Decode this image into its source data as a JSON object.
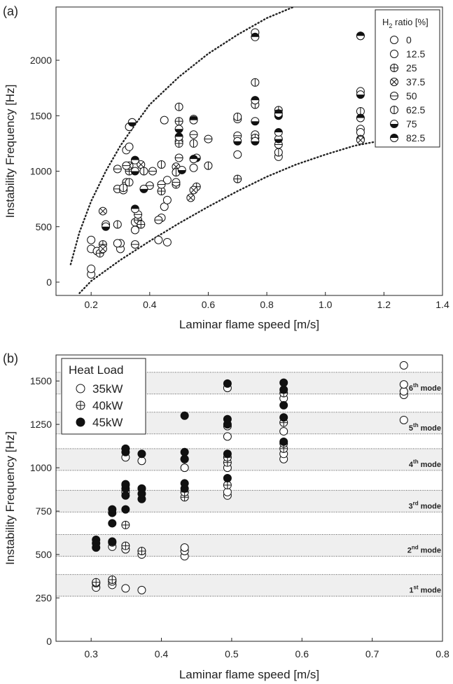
{
  "chart_data": [
    {
      "type": "scatter",
      "panel_label": "(a)",
      "xlabel": "Laminar flame speed [m/s]",
      "ylabel": "Instability Frequency [Hz]",
      "xlim": [
        0.08,
        1.4
      ],
      "ylim": [
        -120,
        2480
      ],
      "xticks": [
        0.2,
        0.4,
        0.6,
        0.8,
        1.0,
        1.2,
        1.4
      ],
      "xtick_labels": [
        "0.2",
        "0.4",
        "0.6",
        "0.8",
        "1.0",
        "1.2",
        "1.4"
      ],
      "yticks": [
        0,
        500,
        1000,
        1500,
        2000
      ],
      "ytick_labels": [
        "0",
        "500",
        "1000",
        "1500",
        "2000"
      ],
      "legend": {
        "title_main": "H",
        "title_sub": "2",
        "title_rest": " ratio [%]",
        "position": "top-right",
        "entries": [
          {
            "label": "0",
            "marker": "empty"
          },
          {
            "label": "12.5",
            "marker": "empty"
          },
          {
            "label": "25",
            "marker": "plus"
          },
          {
            "label": "37.5",
            "marker": "x"
          },
          {
            "label": "50",
            "marker": "hline"
          },
          {
            "label": "62.5",
            "marker": "vline"
          },
          {
            "label": "75",
            "marker": "bottomfill"
          },
          {
            "label": "82.5",
            "marker": "topfill"
          }
        ]
      },
      "curves": [
        {
          "name": "upper-bound",
          "style": "dotted",
          "x": [
            0.13,
            0.16,
            0.2,
            0.25,
            0.3,
            0.35,
            0.4,
            0.5,
            0.6,
            0.7,
            0.8,
            0.9
          ],
          "y": [
            160,
            450,
            730,
            1000,
            1230,
            1420,
            1600,
            1850,
            2060,
            2230,
            2380,
            2490
          ]
        },
        {
          "name": "lower-bound",
          "style": "dotted",
          "x": [
            0.16,
            0.2,
            0.3,
            0.4,
            0.5,
            0.6,
            0.7,
            0.8,
            0.9,
            1.0,
            1.1,
            1.2
          ],
          "y": [
            -100,
            10,
            200,
            370,
            530,
            680,
            820,
            950,
            1060,
            1150,
            1230,
            1280
          ]
        },
        {
          "name": "lower-bound-ext",
          "style": "dotted",
          "x": [
            1.2,
            1.25
          ],
          "y": [
            1280,
            1300
          ]
        }
      ],
      "series": [
        {
          "name": "0",
          "marker": "empty",
          "x": [
            0.2,
            0.2,
            0.2,
            0.3,
            0.3,
            0.33,
            0.35,
            0.43,
            0.46,
            0.45,
            0.76,
            1.12
          ],
          "y": [
            70,
            120,
            380,
            300,
            350,
            1400,
            540,
            380,
            360,
            1460,
            2250,
            2220
          ]
        },
        {
          "name": "12.5",
          "marker": "empty",
          "x": [
            0.2,
            0.22,
            0.29,
            0.32,
            0.33,
            0.35,
            0.44,
            0.45,
            0.46,
            0.46,
            0.5,
            0.55,
            0.7,
            0.7,
            0.76,
            0.84,
            1.12,
            1.12,
            1.12
          ],
          "y": [
            300,
            280,
            350,
            1190,
            1220,
            470,
            580,
            680,
            740,
            920,
            1270,
            1030,
            1150,
            1470,
            1330,
            1130,
            1380,
            1350,
            1720
          ]
        },
        {
          "name": "25",
          "marker": "plus",
          "x": [
            0.23,
            0.24,
            0.33,
            0.36,
            0.37,
            0.44,
            0.49,
            0.5,
            0.5,
            0.56,
            0.7,
            0.76,
            0.84,
            1.12
          ],
          "y": [
            260,
            340,
            1000,
            560,
            520,
            820,
            880,
            1450,
            1250,
            860,
            930,
            1300,
            1550,
            1290
          ]
        },
        {
          "name": "37.5",
          "marker": "x",
          "x": [
            0.24,
            0.24,
            0.33,
            0.37,
            0.49,
            0.54,
            0.55,
            1.12
          ],
          "y": [
            300,
            640,
            1050,
            1060,
            1040,
            760,
            830,
            1280
          ]
        },
        {
          "name": "50",
          "marker": "hline",
          "x": [
            0.25,
            0.29,
            0.29,
            0.31,
            0.32,
            0.32,
            0.35,
            0.36,
            0.4,
            0.41,
            0.43,
            0.44,
            0.49,
            0.5,
            0.55,
            0.6,
            0.7,
            0.84
          ],
          "y": [
            520,
            840,
            1020,
            830,
            900,
            1050,
            340,
            610,
            870,
            1000,
            560,
            880,
            900,
            1120,
            1330,
            1290,
            1320,
            1240
          ]
        },
        {
          "name": "62.5",
          "marker": "vline",
          "x": [
            0.29,
            0.31,
            0.33,
            0.38,
            0.44,
            0.49,
            0.5,
            0.55,
            0.6,
            0.7,
            0.76,
            0.76,
            0.84,
            1.12
          ],
          "y": [
            520,
            850,
            900,
            1000,
            1060,
            990,
            1580,
            1250,
            1050,
            1490,
            1800,
            1600,
            1170,
            1540
          ]
        },
        {
          "name": "75",
          "marker": "bottomfill",
          "x": [
            0.25,
            0.34,
            0.35,
            0.38,
            0.5,
            0.51,
            0.55,
            0.56,
            0.7,
            0.76,
            0.76,
            0.84,
            0.84,
            1.12
          ],
          "y": [
            500,
            1440,
            1000,
            840,
            1380,
            1010,
            1470,
            1120,
            1270,
            1450,
            1270,
            1500,
            1290,
            1690
          ]
        },
        {
          "name": "82.5",
          "marker": "topfill",
          "x": [
            0.35,
            0.35,
            0.5,
            0.55,
            0.55,
            0.76,
            0.76,
            0.84,
            0.84,
            1.12,
            1.12
          ],
          "y": [
            660,
            1100,
            1310,
            1110,
            1460,
            1640,
            2210,
            1520,
            1350,
            1480,
            2220
          ]
        }
      ]
    },
    {
      "type": "scatter",
      "panel_label": "(b)",
      "xlabel": "Laminar flame speed [m/s]",
      "ylabel": "Instability Frequency [Hz]",
      "xlim": [
        0.25,
        0.8
      ],
      "ylim": [
        0,
        1650
      ],
      "xticks": [
        0.3,
        0.4,
        0.5,
        0.6,
        0.7,
        0.8
      ],
      "xtick_labels": [
        "0.3",
        "0.4",
        "0.5",
        "0.6",
        "0.7",
        "0.8"
      ],
      "yticks": [
        0,
        250,
        500,
        750,
        1000,
        1250,
        1500
      ],
      "ytick_labels": [
        "0",
        "250",
        "500",
        "750",
        "1000",
        "1250",
        "1500"
      ],
      "legend": {
        "title": "Heat Load",
        "position": "top-left",
        "entries": [
          {
            "label": "35kW",
            "marker": "empty"
          },
          {
            "label": "40kW",
            "marker": "plus"
          },
          {
            "label": "45kW",
            "marker": "filled"
          }
        ]
      },
      "mode_bands": [
        {
          "mode": "1st",
          "label_num": "1",
          "label_sup": "st",
          "label_rest": " mode",
          "range": [
            260,
            385
          ]
        },
        {
          "mode": "2nd",
          "label_num": "2",
          "label_sup": "nd",
          "label_rest": " mode",
          "range": [
            490,
            615
          ]
        },
        {
          "mode": "3rd",
          "label_num": "3",
          "label_sup": "rd",
          "label_rest": " mode",
          "range": [
            745,
            870
          ]
        },
        {
          "mode": "4th",
          "label_num": "4",
          "label_sup": "th",
          "label_rest": " mode",
          "range": [
            985,
            1110
          ]
        },
        {
          "mode": "5th",
          "label_num": "5",
          "label_sup": "th",
          "label_rest": " mode",
          "range": [
            1195,
            1320
          ]
        },
        {
          "mode": "6th",
          "label_num": "6",
          "label_sup": "th",
          "label_rest": " mode",
          "range": [
            1425,
            1550
          ]
        }
      ],
      "series": [
        {
          "name": "35kW",
          "marker": "empty",
          "x": [
            0.307,
            0.307,
            0.33,
            0.33,
            0.33,
            0.349,
            0.349,
            0.349,
            0.349,
            0.372,
            0.372,
            0.372,
            0.433,
            0.433,
            0.433,
            0.433,
            0.494,
            0.494,
            0.494,
            0.494,
            0.494,
            0.494,
            0.574,
            0.574,
            0.574,
            0.574,
            0.745,
            0.745,
            0.745,
            0.745,
            0.745
          ],
          "y": [
            310,
            335,
            325,
            345,
            545,
            305,
            530,
            860,
            1060,
            295,
            500,
            1040,
            490,
            520,
            540,
            1000,
            840,
            860,
            1000,
            1180,
            1240,
            1460,
            1050,
            1080,
            1210,
            1400,
            1275,
            1420,
            1440,
            1480,
            1590
          ]
        },
        {
          "name": "40kW",
          "marker": "plus",
          "x": [
            0.307,
            0.33,
            0.33,
            0.349,
            0.349,
            0.349,
            0.372,
            0.372,
            0.433,
            0.433,
            0.433,
            0.494,
            0.494,
            0.494,
            0.574,
            0.574,
            0.574,
            0.574
          ],
          "y": [
            340,
            355,
            570,
            550,
            670,
            900,
            520,
            880,
            830,
            860,
            1050,
            900,
            1030,
            1060,
            1110,
            1140,
            1260,
            1430
          ]
        },
        {
          "name": "45kW",
          "marker": "filled",
          "x": [
            0.307,
            0.307,
            0.307,
            0.33,
            0.33,
            0.33,
            0.33,
            0.349,
            0.349,
            0.349,
            0.349,
            0.349,
            0.349,
            0.372,
            0.372,
            0.372,
            0.372,
            0.433,
            0.433,
            0.433,
            0.433,
            0.433,
            0.494,
            0.494,
            0.494,
            0.494,
            0.494,
            0.574,
            0.574,
            0.574,
            0.574,
            0.574
          ],
          "y": [
            540,
            565,
            585,
            680,
            740,
            760,
            575,
            760,
            840,
            880,
            905,
            1090,
            1110,
            820,
            850,
            880,
            1080,
            880,
            910,
            1050,
            1090,
            1300,
            940,
            1080,
            1250,
            1280,
            1485,
            1150,
            1290,
            1360,
            1450,
            1490
          ]
        }
      ]
    }
  ]
}
